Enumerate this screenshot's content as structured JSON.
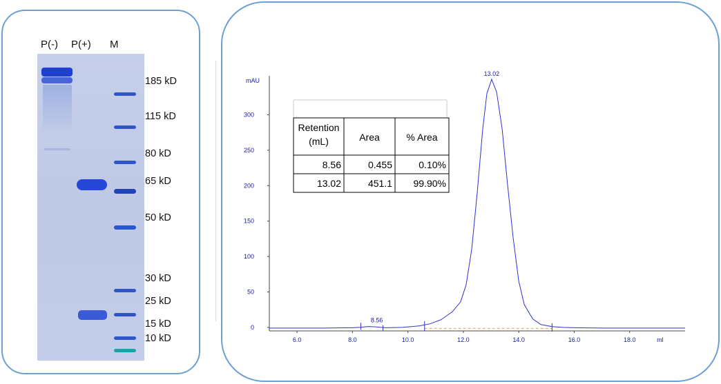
{
  "gel": {
    "lanes": [
      "P(-)",
      "P(+)",
      "M"
    ],
    "markers": [
      "185 kD",
      "115 kD",
      "80 kD",
      "65 kD",
      "50 kD",
      "30 kD",
      "25 kD",
      "15 kD",
      "10 kD"
    ]
  },
  "colors": {
    "panel_border": "#6d9fd4",
    "trace": "#2f2fd6",
    "axis_text": "#1a1aa8",
    "baseline_dash": "#e8a040",
    "gel_band": "#2b4ed8"
  },
  "chart_data": {
    "type": "line",
    "title": "",
    "xlabel": "ml",
    "ylabel": "mAU",
    "xlim": [
      5.0,
      20.0
    ],
    "ylim": [
      -5,
      355
    ],
    "xticks": [
      "6.0",
      "8.0",
      "10.0",
      "12.0",
      "14.0",
      "16.0",
      "18.0"
    ],
    "yticks": [
      "0",
      "50",
      "100",
      "150",
      "200",
      "250",
      "300"
    ],
    "peak_labels": [
      "8.56",
      "13.02"
    ],
    "series": [
      {
        "x": [
          5.0,
          6.0,
          7.0,
          8.0,
          8.3,
          8.56,
          8.8,
          9.2,
          9.8,
          10.4,
          10.8,
          11.2,
          11.6,
          11.9,
          12.1,
          12.3,
          12.5,
          12.7,
          12.85,
          13.02,
          13.2,
          13.4,
          13.6,
          13.8,
          14.0,
          14.2,
          14.5,
          14.8,
          15.2,
          15.6,
          16.0,
          17.0,
          18.0,
          19.0,
          20.0
        ],
        "y": [
          -1,
          -1,
          -1,
          -0.5,
          0.2,
          1.2,
          0.8,
          -0.5,
          0,
          2,
          5,
          11,
          22,
          36,
          60,
          110,
          190,
          280,
          330,
          350,
          332,
          280,
          200,
          125,
          65,
          32,
          12,
          4,
          1,
          0,
          -0.5,
          -1,
          -1,
          -1,
          -1
        ]
      }
    ],
    "table": {
      "headers": [
        "Retention\n(mL)",
        "Area",
        "% Area"
      ],
      "rows": [
        [
          "8.56",
          "0.455",
          "0.10%"
        ],
        [
          "13.02",
          "451.1",
          "99.90%"
        ]
      ]
    }
  }
}
